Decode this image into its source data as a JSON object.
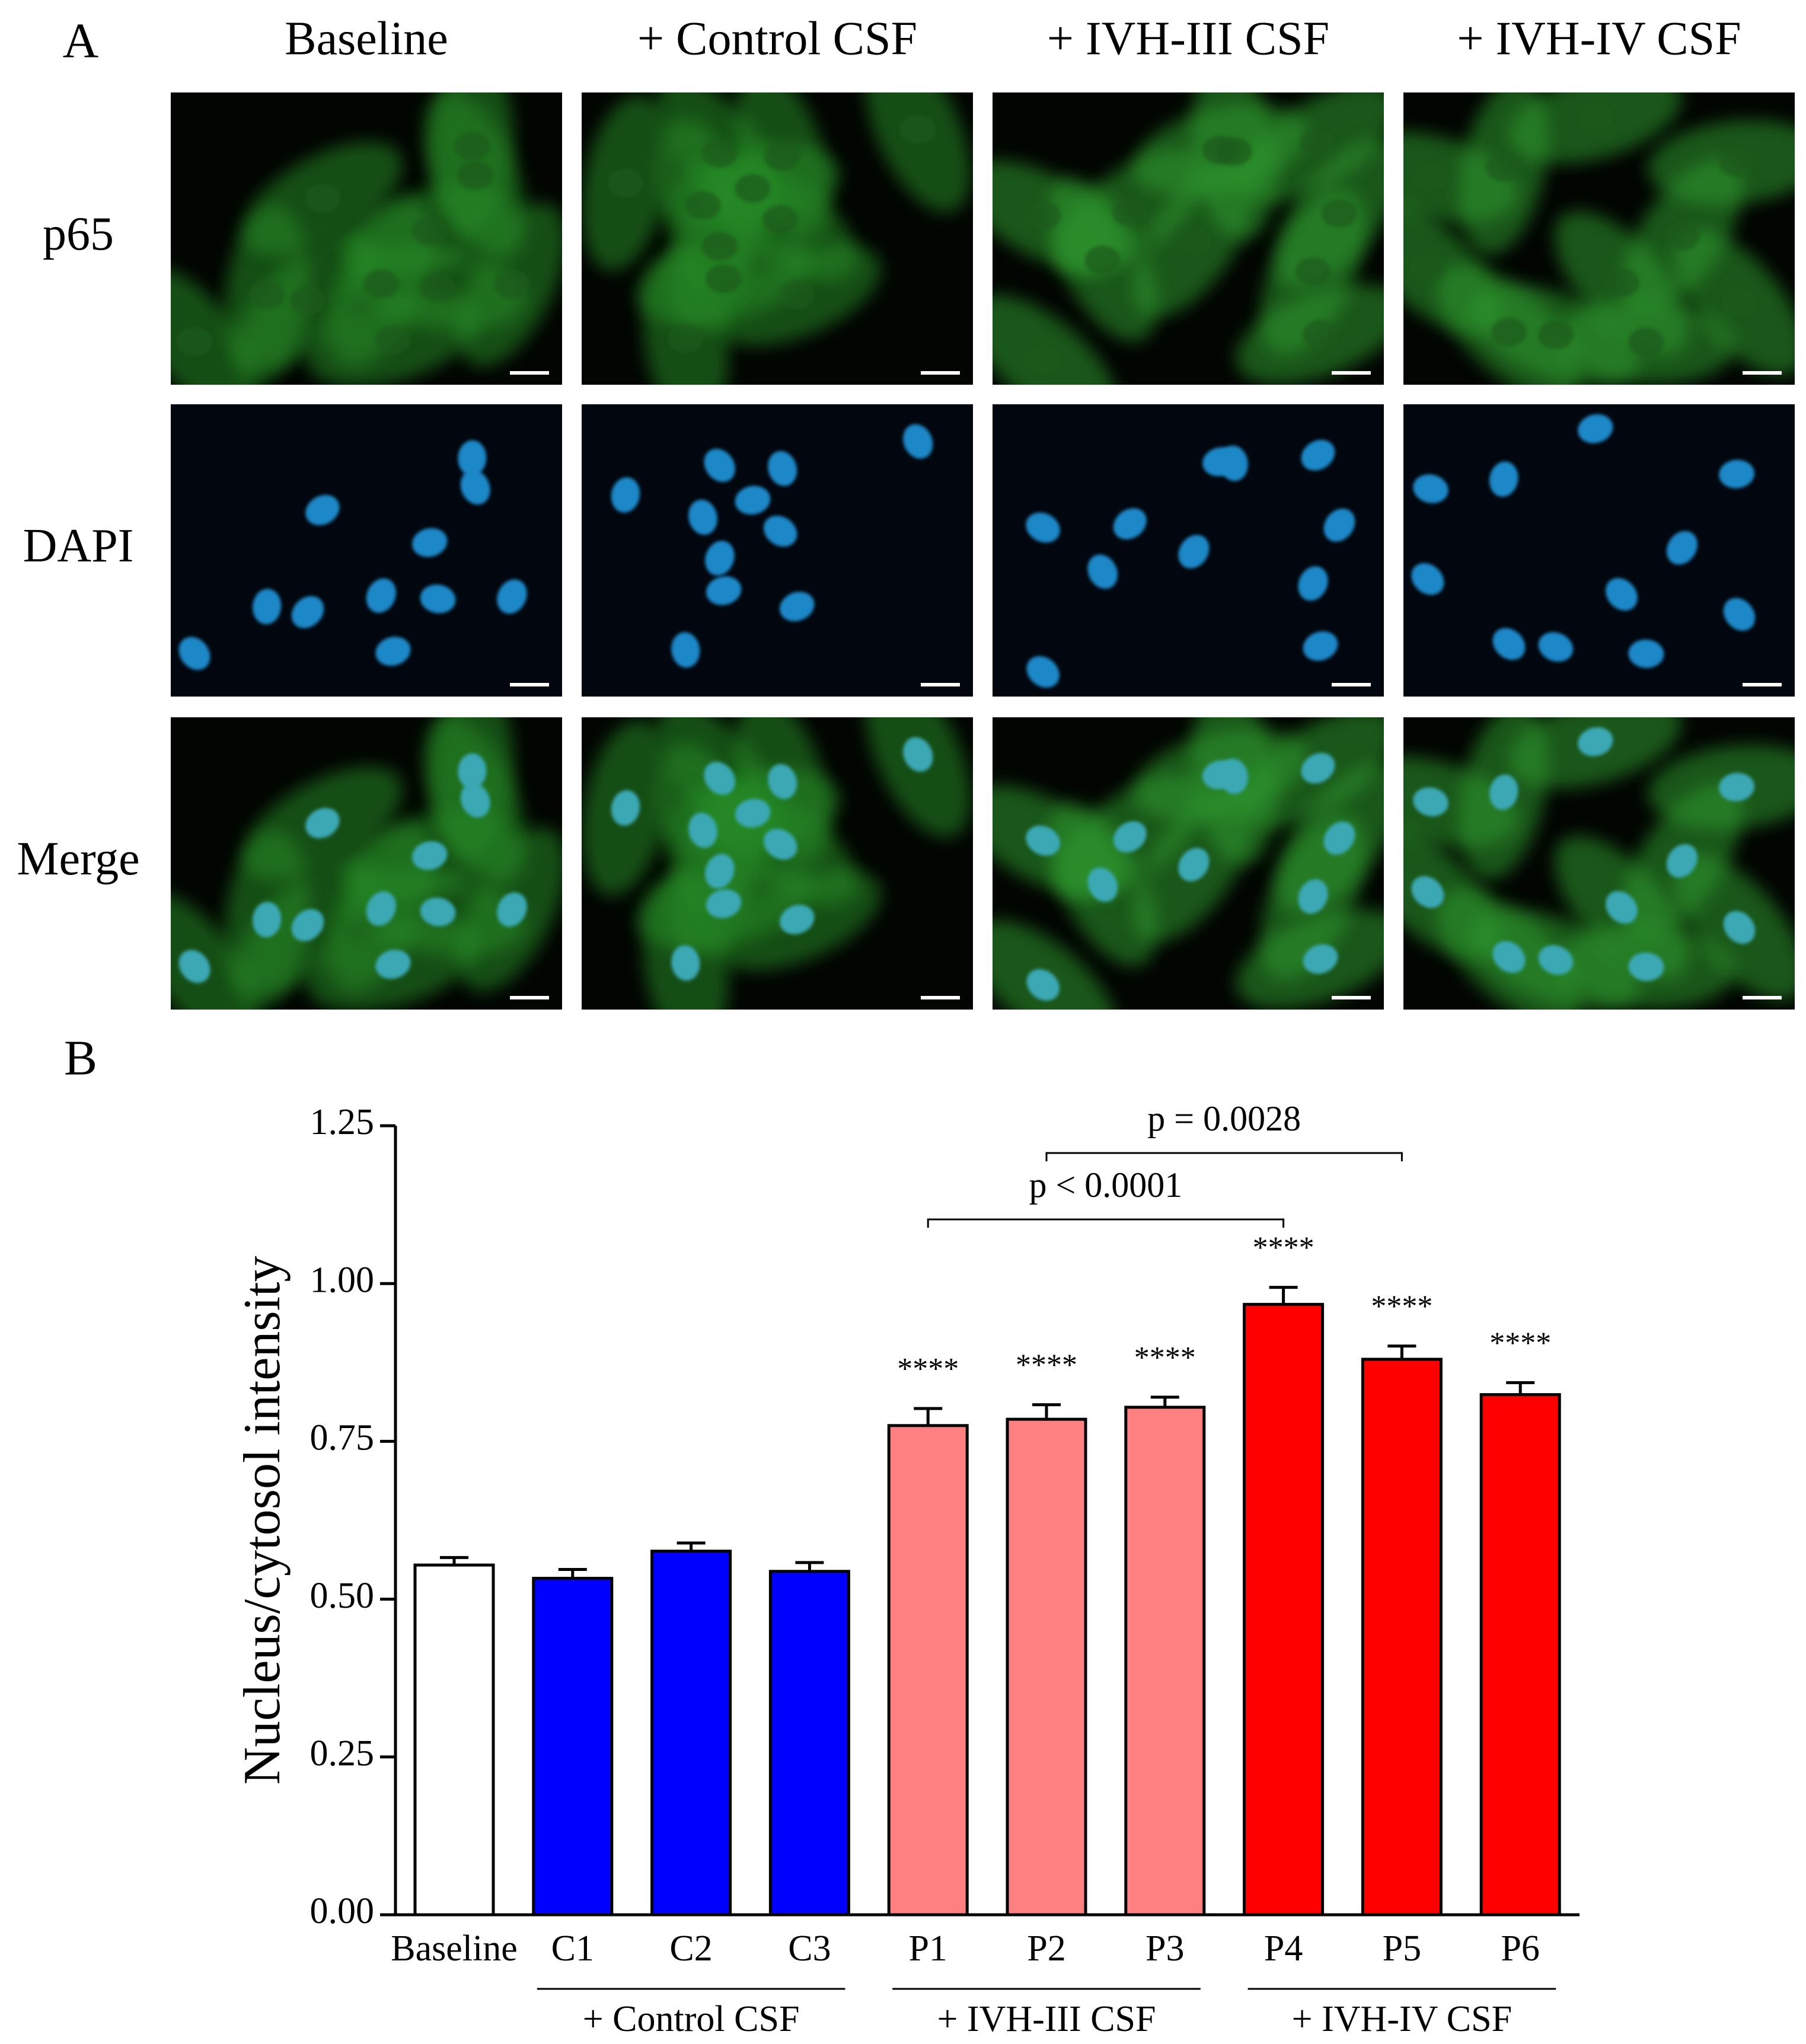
{
  "panel_a": {
    "label": "A",
    "columns": [
      "Baseline",
      "+ Control CSF",
      "+ IVH-III CSF",
      "+ IVH-IV CSF"
    ],
    "rows": [
      "p65",
      "DAPI",
      "Merge"
    ]
  },
  "chart_data": {
    "type": "bar",
    "panel_label": "B",
    "ylabel": "Nucleus/cytosol intensity",
    "categories": [
      "Baseline",
      "C1",
      "C2",
      "C3",
      "P1",
      "P2",
      "P3",
      "P4",
      "P5",
      "P6"
    ],
    "values": [
      0.554,
      0.533,
      0.576,
      0.544,
      0.775,
      0.785,
      0.804,
      0.967,
      0.88,
      0.824
    ],
    "errors": [
      0.012,
      0.014,
      0.013,
      0.014,
      0.027,
      0.023,
      0.016,
      0.027,
      0.021,
      0.019
    ],
    "colors": [
      "#ffffff",
      "#0000ff",
      "#0000ff",
      "#0000ff",
      "#ff8080",
      "#ff8080",
      "#ff8080",
      "#ff0000",
      "#ff0000",
      "#ff0000"
    ],
    "significance": [
      null,
      null,
      null,
      null,
      "****",
      "****",
      "****",
      "****",
      "****",
      "****"
    ],
    "groups": [
      {
        "label": "+ Control CSF",
        "from": "C1",
        "to": "C3"
      },
      {
        "label": "+ IVH-III CSF",
        "from": "P1",
        "to": "P3"
      },
      {
        "label": "+ IVH-IV CSF",
        "from": "P4",
        "to": "P6"
      }
    ],
    "comparisons": [
      {
        "label": "p < 0.0001",
        "from": "P1",
        "to": "P4"
      },
      {
        "label": "p = 0.0028",
        "from": "P2",
        "to": "P5"
      }
    ],
    "ylim": [
      0,
      1.25
    ],
    "yticks": [
      {
        "value": 0,
        "label": "0.00"
      },
      {
        "value": 0.25,
        "label": "0.25"
      },
      {
        "value": 0.5,
        "label": "0.50"
      },
      {
        "value": 0.75,
        "label": "0.75"
      },
      {
        "value": 1,
        "label": "1.00"
      },
      {
        "value": 1.25,
        "label": "1.25"
      }
    ]
  }
}
